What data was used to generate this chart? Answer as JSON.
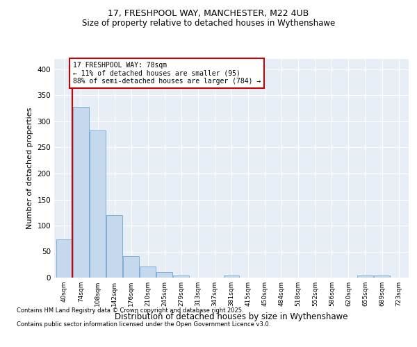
{
  "title1": "17, FRESHPOOL WAY, MANCHESTER, M22 4UB",
  "title2": "Size of property relative to detached houses in Wythenshawe",
  "xlabel": "Distribution of detached houses by size in Wythenshawe",
  "ylabel": "Number of detached properties",
  "categories": [
    "40sqm",
    "74sqm",
    "108sqm",
    "142sqm",
    "176sqm",
    "210sqm",
    "245sqm",
    "279sqm",
    "313sqm",
    "347sqm",
    "381sqm",
    "415sqm",
    "450sqm",
    "484sqm",
    "518sqm",
    "552sqm",
    "586sqm",
    "620sqm",
    "655sqm",
    "689sqm",
    "723sqm"
  ],
  "values": [
    74,
    328,
    283,
    120,
    42,
    22,
    11,
    4,
    0,
    0,
    4,
    0,
    0,
    0,
    0,
    0,
    0,
    0,
    4,
    4,
    0
  ],
  "bar_color": "#c5d8ed",
  "bar_edge_color": "#7bafd4",
  "vline_x": 0.5,
  "vline_color": "#cc0000",
  "annotation_text": "17 FRESHPOOL WAY: 78sqm\n← 11% of detached houses are smaller (95)\n88% of semi-detached houses are larger (784) →",
  "annotation_box_color": "#ffffff",
  "annotation_box_edge": "#cc0000",
  "ylim": [
    0,
    420
  ],
  "yticks": [
    0,
    50,
    100,
    150,
    200,
    250,
    300,
    350,
    400
  ],
  "footer1": "Contains HM Land Registry data © Crown copyright and database right 2025.",
  "footer2": "Contains public sector information licensed under the Open Government Licence v3.0.",
  "bg_color": "#e8eef6",
  "grid_color": "#ffffff",
  "title1_fontsize": 9,
  "title2_fontsize": 8.5
}
